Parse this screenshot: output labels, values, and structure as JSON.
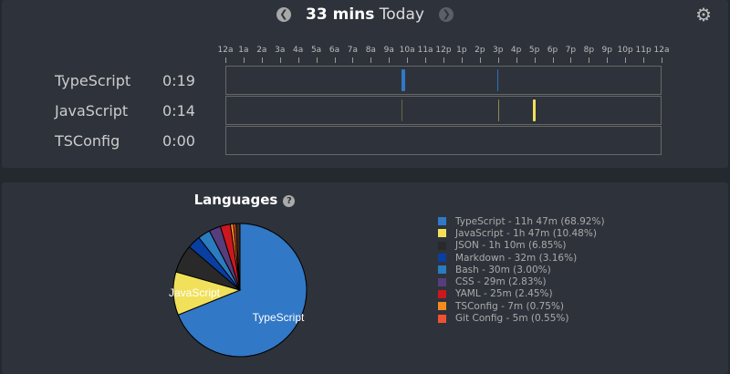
{
  "header": {
    "total": "33 mins",
    "period": "Today",
    "prev_icon": "chevron-left-icon",
    "next_icon": "chevron-right-icon",
    "settings_icon": "gear-icon"
  },
  "timeline": {
    "hours": [
      "12a",
      "1a",
      "2a",
      "3a",
      "4a",
      "5a",
      "6a",
      "7a",
      "8a",
      "9a",
      "10a",
      "11a",
      "12p",
      "1p",
      "2p",
      "3p",
      "4p",
      "5p",
      "6p",
      "7p",
      "8p",
      "9p",
      "10p",
      "11p",
      "12a"
    ],
    "rows": [
      {
        "language": "TypeScript",
        "duration": "0:19",
        "color": "#3178c6",
        "activity": [
          {
            "start": 9.7,
            "hours": 0.2,
            "opacity": 1
          },
          {
            "start": 14.95,
            "hours": 0.05,
            "opacity": 0.9
          }
        ]
      },
      {
        "language": "JavaScript",
        "duration": "0:14",
        "color": "#f1e05a",
        "activity": [
          {
            "start": 9.7,
            "hours": 0.04,
            "opacity": 0.3
          },
          {
            "start": 15.0,
            "hours": 0.04,
            "opacity": 0.5
          },
          {
            "start": 16.9,
            "hours": 0.18,
            "opacity": 1
          }
        ]
      },
      {
        "language": "TSConfig",
        "duration": "0:00",
        "color": "#f58b1f",
        "activity": []
      }
    ]
  },
  "languages": {
    "title": "Languages",
    "help_icon": "question-circle-icon",
    "pie_labels": [
      "TypeScript",
      "JavaScript"
    ],
    "items": [
      {
        "label": "TypeScript - 11h 47m (68.92%)",
        "name": "TypeScript",
        "percent": 68.92,
        "color": "#3178c6"
      },
      {
        "label": "JavaScript - 1h 47m (10.48%)",
        "name": "JavaScript",
        "percent": 10.48,
        "color": "#f1e05a"
      },
      {
        "label": "JSON - 1h 10m (6.85%)",
        "name": "JSON",
        "percent": 6.85,
        "color": "#292929"
      },
      {
        "label": "Markdown - 32m (3.16%)",
        "name": "Markdown",
        "percent": 3.16,
        "color": "#083fa1"
      },
      {
        "label": "Bash - 30m (3.00%)",
        "name": "Bash",
        "percent": 3.0,
        "color": "#2b7bbf"
      },
      {
        "label": "CSS - 29m (2.83%)",
        "name": "CSS",
        "percent": 2.83,
        "color": "#563d7c"
      },
      {
        "label": "YAML - 25m (2.45%)",
        "name": "YAML",
        "percent": 2.45,
        "color": "#cb171e"
      },
      {
        "label": "TSConfig - 7m (0.75%)",
        "name": "TSConfig",
        "percent": 0.75,
        "color": "#f58b1f"
      },
      {
        "label": "Git Config - 5m (0.55%)",
        "name": "Git Config",
        "percent": 0.55,
        "color": "#f05133"
      }
    ]
  }
}
